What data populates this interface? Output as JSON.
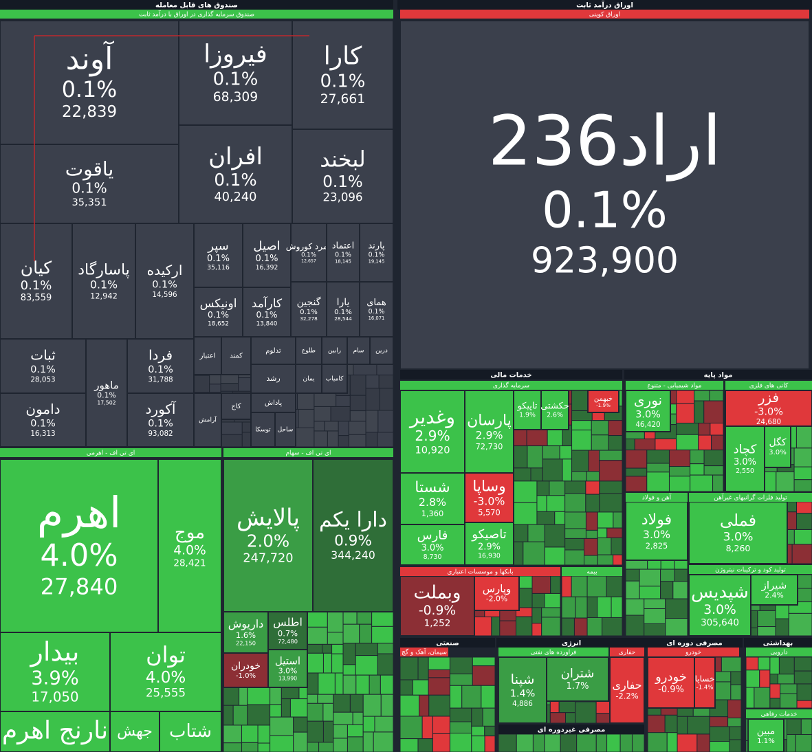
{
  "sections": [
    {
      "title": "صندوق های قابل معامله",
      "groups": [
        {
          "title": "صندوق سرمایه گذاری در اوراق با درآمد ثابت",
          "tiles": [
            {
              "name": "آوند",
              "change": "0.1%",
              "value": "22,839"
            },
            {
              "name": "فیروزا",
              "change": "0.1%",
              "value": "68,309"
            },
            {
              "name": "کارا",
              "change": "0.1%",
              "value": "27,661"
            },
            {
              "name": "یاقوت",
              "change": "0.1%",
              "value": "35,351"
            },
            {
              "name": "افران",
              "change": "0.1%",
              "value": "40,240"
            },
            {
              "name": "لبخند",
              "change": "0.1%",
              "value": "23,096"
            },
            {
              "name": "کیان",
              "change": "0.1%",
              "value": "83,559"
            },
            {
              "name": "پاسارگاد",
              "change": "0.1%",
              "value": "12,942"
            },
            {
              "name": "ارکیده",
              "change": "0.1%",
              "value": "14,596"
            },
            {
              "name": "سپر",
              "change": "0.1%",
              "value": "35,116"
            },
            {
              "name": "اصیل",
              "change": "0.1%",
              "value": "16,392"
            },
            {
              "name": "زمرد کوروش",
              "change": "0.1%",
              "value": "12,657"
            },
            {
              "name": "اعتماد",
              "change": "0.1%",
              "value": "18,145"
            },
            {
              "name": "پارند",
              "change": "0.1%",
              "value": "19,145"
            },
            {
              "name": "اونیکس",
              "change": "0.1%",
              "value": "18,652"
            },
            {
              "name": "کارآمد",
              "change": "0.1%",
              "value": "13,840"
            },
            {
              "name": "گنجین",
              "change": "0.1%",
              "value": "32,278"
            },
            {
              "name": "یارا",
              "change": "0.1%",
              "value": "28,544"
            },
            {
              "name": "همای",
              "change": "0.1%",
              "value": "16,071"
            },
            {
              "name": "ثبات",
              "change": "0.1%",
              "value": "28,053"
            },
            {
              "name": "ماهور",
              "change": "0.1%",
              "value": "17,502"
            },
            {
              "name": "فردا",
              "change": "0.1%",
              "value": "31,788"
            },
            {
              "name": "دامون",
              "change": "0.1%",
              "value": "16,313"
            },
            {
              "name": "آکورد",
              "change": "0.1%",
              "value": "93,082"
            },
            {
              "name": "اعتبار"
            },
            {
              "name": "کمند"
            },
            {
              "name": "تدلوم"
            },
            {
              "name": "طلوع"
            },
            {
              "name": "رابین"
            },
            {
              "name": "سام"
            },
            {
              "name": "درین"
            },
            {
              "name": "رشد"
            },
            {
              "name": "یمان"
            },
            {
              "name": "کامیاب"
            },
            {
              "name": "کاج"
            },
            {
              "name": "پاداش"
            },
            {
              "name": "آرامش"
            },
            {
              "name": "توسکا"
            },
            {
              "name": "ساحل"
            }
          ]
        },
        {
          "title": "ای تی اف - اهرمی",
          "tiles": [
            {
              "name": "اهرم",
              "change": "4.0%",
              "value": "27,840"
            },
            {
              "name": "موج",
              "change": "4.0%",
              "value": "28,421"
            },
            {
              "name": "بیدار",
              "change": "3.9%",
              "value": "17,050"
            },
            {
              "name": "توان",
              "change": "4.0%",
              "value": "25,555"
            },
            {
              "name": "نارنج اهرم"
            },
            {
              "name": "جهش"
            },
            {
              "name": "شتاب"
            }
          ]
        },
        {
          "title": "ای تی اف - سهام",
          "tiles": [
            {
              "name": "پالایش",
              "change": "2.0%",
              "value": "247,720"
            },
            {
              "name": "دارا یکم",
              "change": "0.9%",
              "value": "344,240"
            },
            {
              "name": "داریوش",
              "change": "1.6%",
              "value": "22,150"
            },
            {
              "name": "اطلس",
              "change": "0.7%",
              "value": "72,480"
            },
            {
              "name": "خودران",
              "change": "-1.0%"
            },
            {
              "name": "استیل",
              "change": "3.0%",
              "value": "13,990"
            }
          ]
        }
      ]
    },
    {
      "title": "اوراق درآمد ثابت",
      "groups": [
        {
          "title": "اوراق کوپنی",
          "tiles": [
            {
              "name": "اراد236",
              "change": "0.1%",
              "value": "923,900"
            }
          ]
        }
      ]
    },
    {
      "title": "خدمات مالی",
      "groups": [
        {
          "title": "سرمایه گذاری",
          "tiles": [
            {
              "name": "وغدیر",
              "change": "2.9%",
              "value": "10,920"
            },
            {
              "name": "پارسان",
              "change": "2.9%",
              "value": "72,730"
            },
            {
              "name": "تاپیکو",
              "change": "1.9%"
            },
            {
              "name": "حکشتی",
              "change": "2.6%"
            },
            {
              "name": "خبهمن",
              "change": "-1.9%"
            },
            {
              "name": "شستا",
              "change": "2.8%",
              "value": "1,360"
            },
            {
              "name": "وساپا",
              "change": "-3.0%",
              "value": "5,570"
            },
            {
              "name": "فارس",
              "change": "3.0%",
              "value": "8,730"
            },
            {
              "name": "تاصیکو",
              "change": "2.9%",
              "value": "16,930"
            }
          ]
        },
        {
          "title": "بانکها و موسسات اعتباری",
          "tiles": [
            {
              "name": "وبملت",
              "change": "-0.9%",
              "value": "1,252"
            },
            {
              "name": "وپارس",
              "change": "-2.0%"
            }
          ]
        },
        {
          "title": "بیمه",
          "tiles": []
        }
      ]
    },
    {
      "title": "مواد پایه",
      "groups": [
        {
          "title": "مواد شیمیایی - متنوع",
          "tiles": [
            {
              "name": "نوری",
              "change": "3.0%",
              "value": "46,420"
            }
          ]
        },
        {
          "title": "کانی های فلزی",
          "tiles": [
            {
              "name": "فزر",
              "change": "-3.0%",
              "value": "24,680"
            },
            {
              "name": "کچاد",
              "change": "3.0%",
              "value": "2,550"
            },
            {
              "name": "کگل",
              "change": "3.0%"
            }
          ]
        },
        {
          "title": "آهن و فولاد",
          "tiles": [
            {
              "name": "فولاد",
              "change": "3.0%",
              "value": "2,825"
            }
          ]
        },
        {
          "title": "تولید فلزات گرانبهای غیرآهن",
          "tiles": [
            {
              "name": "فملی",
              "change": "3.0%",
              "value": "8,260"
            }
          ]
        },
        {
          "title": "تولید کود و ترکیبات نیتروژن",
          "tiles": [
            {
              "name": "شپدیس",
              "change": "3.0%",
              "value": "305,640"
            },
            {
              "name": "شیراز",
              "change": "2.4%"
            }
          ]
        }
      ]
    },
    {
      "title": "صنعتی",
      "groups": [
        {
          "title": "سیمان، آهک و گچ",
          "tiles": []
        }
      ]
    },
    {
      "title": "انرژی",
      "groups": [
        {
          "title": "فراورده های نفتی",
          "tiles": [
            {
              "name": "شپنا",
              "change": "1.4%",
              "value": "4,886"
            },
            {
              "name": "شتران",
              "change": "1.7%"
            }
          ]
        },
        {
          "title": "حفاری",
          "tiles": [
            {
              "name": "حفاری",
              "change": "-2.2%"
            }
          ]
        }
      ]
    },
    {
      "title": "مصرفی دوره ای",
      "groups": [
        {
          "title": "خودرو",
          "tiles": [
            {
              "name": "خودرو",
              "change": "-0.9%"
            },
            {
              "name": "خساپا",
              "change": "-1.4%"
            }
          ]
        }
      ]
    },
    {
      "title": "بهداشتی",
      "groups": [
        {
          "title": "دارویی",
          "tiles": []
        },
        {
          "title": "خدمات رفاهی",
          "tiles": [
            {
              "name": "مبین",
              "change": "1.1%"
            }
          ]
        }
      ]
    },
    {
      "title": "مصرفی غیردوره ای",
      "groups": []
    }
  ]
}
